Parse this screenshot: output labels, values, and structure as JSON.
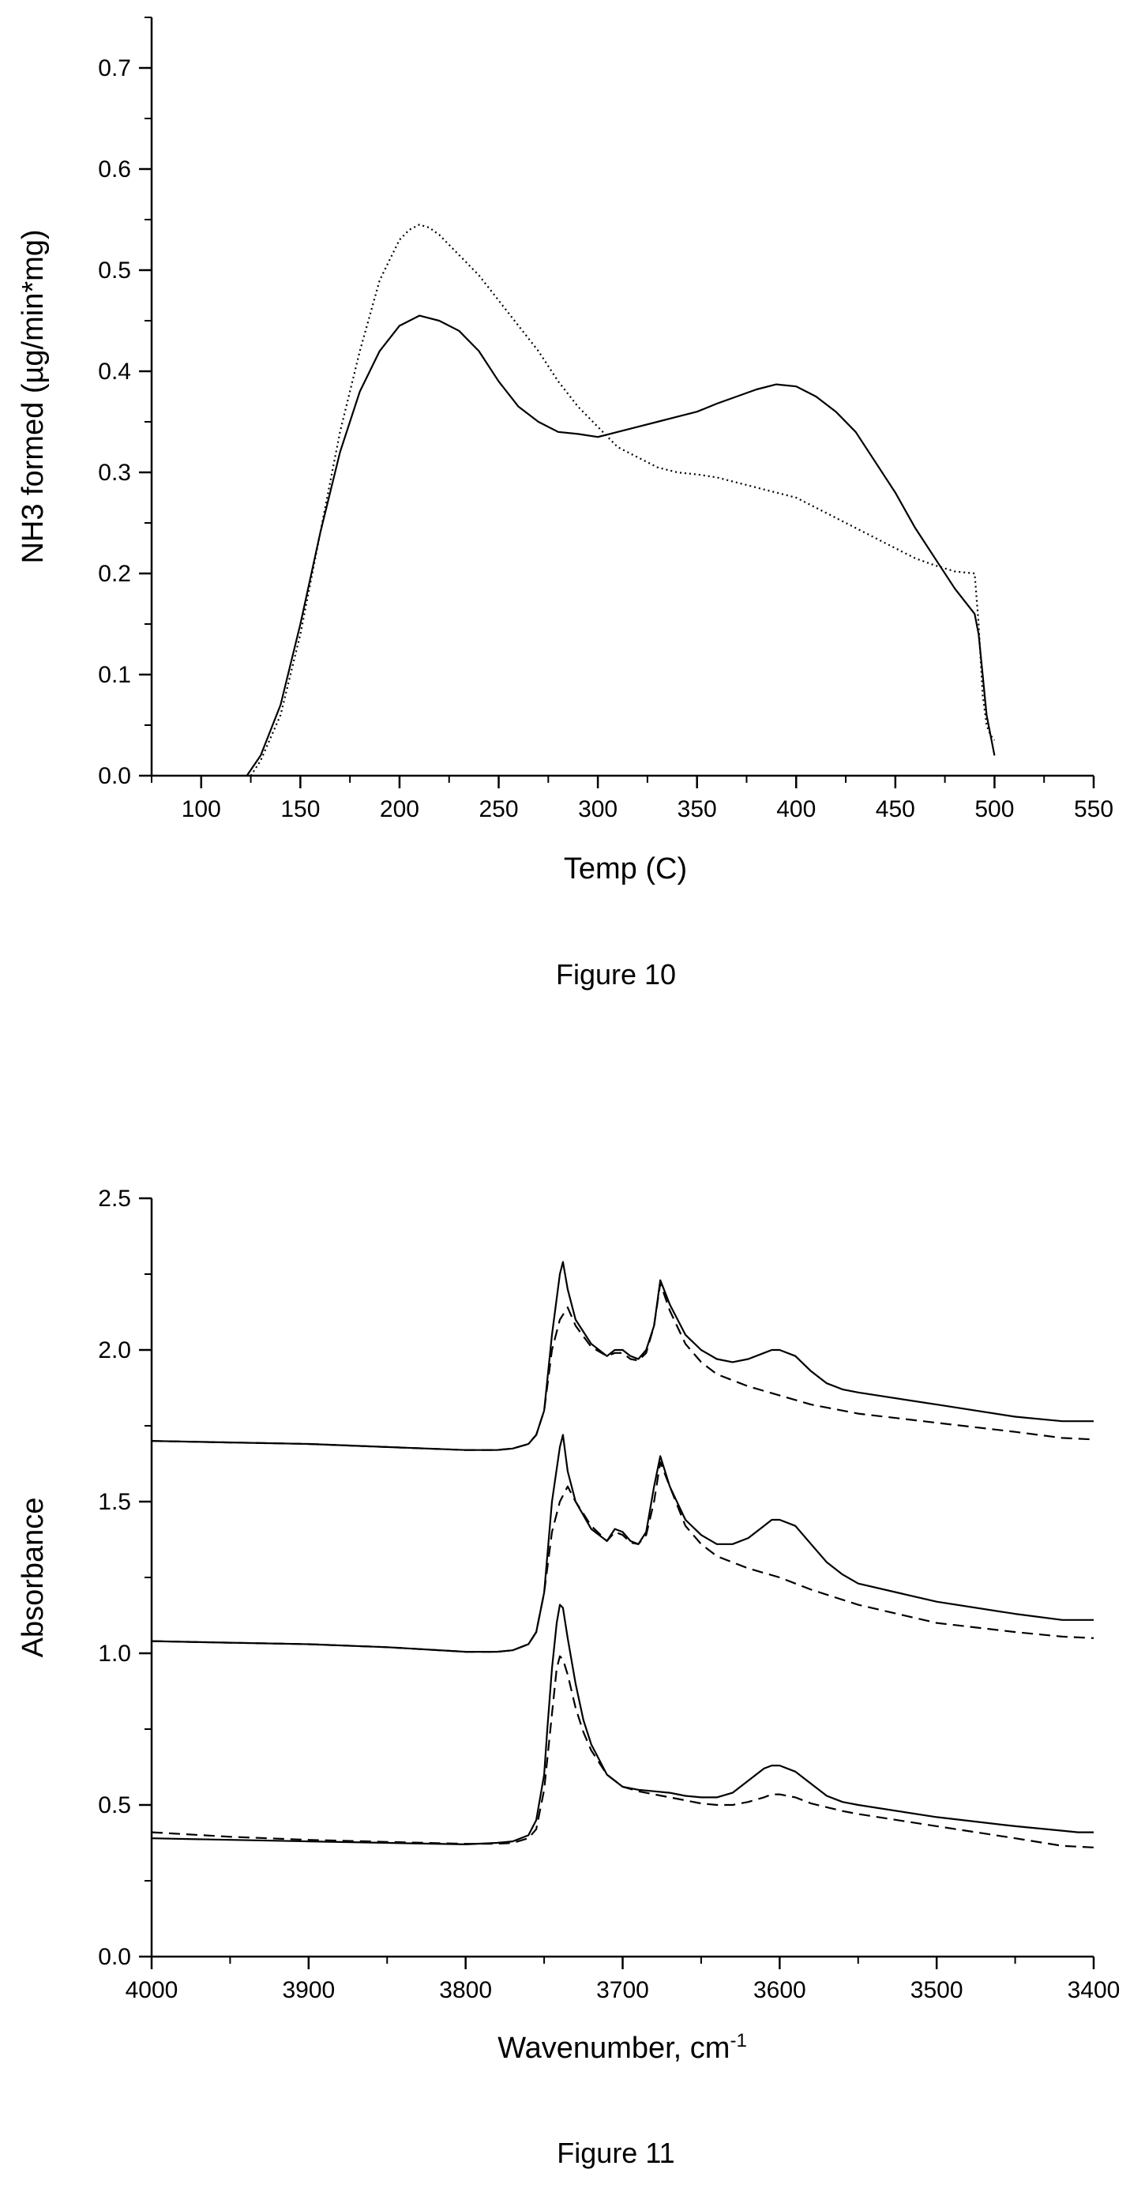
{
  "chart_data": [
    {
      "type": "line",
      "title": "",
      "caption": "Figure 10",
      "xlabel": "Temp (C)",
      "ylabel": "NH3 formed (µg/min*mg)",
      "xlim": [
        75,
        550
      ],
      "ylim": [
        0,
        0.75
      ],
      "xticks": [
        100,
        150,
        200,
        250,
        300,
        350,
        400,
        450,
        500,
        550
      ],
      "xtick_labels": [
        "100",
        "150",
        "200",
        "250",
        "300",
        "350",
        "400",
        "450",
        "500",
        "550"
      ],
      "yticks": [
        0.0,
        0.1,
        0.2,
        0.3,
        0.4,
        0.5,
        0.6,
        0.7
      ],
      "ytick_labels": [
        "0.0",
        "0.1",
        "0.2",
        "0.3",
        "0.4",
        "0.5",
        "0.6",
        "0.7"
      ],
      "grid": false,
      "series": [
        {
          "style": "solid",
          "x": [
            123,
            130,
            140,
            150,
            160,
            170,
            180,
            190,
            200,
            210,
            220,
            230,
            240,
            250,
            260,
            270,
            280,
            290,
            300,
            310,
            320,
            330,
            340,
            350,
            360,
            370,
            380,
            390,
            400,
            410,
            420,
            430,
            440,
            450,
            460,
            470,
            480,
            490,
            492,
            494,
            496,
            498,
            500
          ],
          "y": [
            0.0,
            0.02,
            0.07,
            0.15,
            0.24,
            0.32,
            0.38,
            0.42,
            0.445,
            0.455,
            0.45,
            0.44,
            0.42,
            0.39,
            0.365,
            0.35,
            0.34,
            0.338,
            0.335,
            0.34,
            0.345,
            0.35,
            0.355,
            0.36,
            0.368,
            0.375,
            0.382,
            0.387,
            0.385,
            0.375,
            0.36,
            0.34,
            0.31,
            0.28,
            0.245,
            0.215,
            0.185,
            0.16,
            0.14,
            0.1,
            0.06,
            0.04,
            0.02
          ]
        },
        {
          "style": "dotted",
          "x": [
            125,
            130,
            140,
            150,
            160,
            170,
            180,
            190,
            200,
            205,
            210,
            215,
            220,
            230,
            240,
            250,
            260,
            270,
            280,
            290,
            300,
            310,
            320,
            330,
            340,
            350,
            360,
            370,
            380,
            390,
            400,
            410,
            420,
            430,
            440,
            450,
            460,
            470,
            480,
            490,
            492,
            494,
            496,
            498,
            500
          ],
          "y": [
            0.0,
            0.015,
            0.06,
            0.14,
            0.24,
            0.34,
            0.42,
            0.49,
            0.53,
            0.54,
            0.545,
            0.542,
            0.535,
            0.515,
            0.495,
            0.47,
            0.445,
            0.42,
            0.39,
            0.365,
            0.345,
            0.325,
            0.315,
            0.305,
            0.3,
            0.298,
            0.295,
            0.29,
            0.285,
            0.28,
            0.275,
            0.265,
            0.255,
            0.245,
            0.235,
            0.225,
            0.215,
            0.208,
            0.202,
            0.2,
            0.15,
            0.08,
            0.05,
            0.04,
            0.035
          ]
        }
      ]
    },
    {
      "type": "line",
      "title": "",
      "caption": "Figure 11",
      "xlabel": "Wavenumber, cm",
      "xlabel_superscript": "-1",
      "ylabel": "Absorbance",
      "xlim": [
        4000,
        3400
      ],
      "x_reversed": true,
      "ylim": [
        0,
        2.5
      ],
      "xticks": [
        4000,
        3900,
        3800,
        3700,
        3600,
        3500,
        3400
      ],
      "xtick_labels": [
        "4000",
        "3900",
        "3800",
        "3700",
        "3600",
        "3500",
        "3400"
      ],
      "yticks": [
        0.0,
        0.5,
        1.0,
        1.5,
        2.0,
        2.5
      ],
      "ytick_labels": [
        "0.0",
        "0.5",
        "1.0",
        "1.5",
        "2.0",
        "2.5"
      ],
      "grid": false,
      "series": [
        {
          "style": "solid",
          "x": [
            4000,
            3950,
            3900,
            3850,
            3800,
            3780,
            3770,
            3760,
            3755,
            3750,
            3745,
            3740,
            3738,
            3735,
            3730,
            3720,
            3710,
            3705,
            3700,
            3695,
            3690,
            3685,
            3680,
            3676,
            3670,
            3660,
            3650,
            3640,
            3630,
            3620,
            3610,
            3605,
            3600,
            3590,
            3580,
            3570,
            3560,
            3550,
            3500,
            3450,
            3420,
            3410,
            3400
          ],
          "y": [
            1.7,
            1.695,
            1.69,
            1.68,
            1.67,
            1.67,
            1.675,
            1.69,
            1.72,
            1.8,
            2.05,
            2.25,
            2.29,
            2.2,
            2.1,
            2.02,
            1.98,
            2.0,
            2.0,
            1.98,
            1.97,
            2.0,
            2.08,
            2.23,
            2.15,
            2.05,
            2.0,
            1.97,
            1.96,
            1.97,
            1.99,
            2.0,
            2.0,
            1.98,
            1.93,
            1.89,
            1.87,
            1.86,
            1.82,
            1.78,
            1.765,
            1.765,
            1.765
          ]
        },
        {
          "style": "dashed",
          "x": [
            4000,
            3950,
            3900,
            3850,
            3800,
            3780,
            3770,
            3760,
            3755,
            3750,
            3745,
            3740,
            3735,
            3730,
            3720,
            3710,
            3705,
            3700,
            3695,
            3690,
            3685,
            3680,
            3676,
            3670,
            3660,
            3650,
            3640,
            3620,
            3600,
            3580,
            3550,
            3500,
            3450,
            3420,
            3400
          ],
          "y": [
            1.7,
            1.695,
            1.69,
            1.68,
            1.67,
            1.67,
            1.675,
            1.69,
            1.72,
            1.8,
            2.0,
            2.1,
            2.14,
            2.08,
            2.01,
            1.98,
            1.99,
            1.99,
            1.97,
            1.965,
            1.99,
            2.08,
            2.22,
            2.13,
            2.02,
            1.96,
            1.92,
            1.88,
            1.85,
            1.82,
            1.79,
            1.76,
            1.73,
            1.71,
            1.705
          ]
        },
        {
          "style": "solid",
          "x": [
            4000,
            3950,
            3900,
            3850,
            3800,
            3780,
            3770,
            3760,
            3755,
            3750,
            3745,
            3740,
            3738,
            3735,
            3730,
            3720,
            3710,
            3705,
            3700,
            3695,
            3690,
            3685,
            3680,
            3676,
            3670,
            3660,
            3650,
            3640,
            3630,
            3620,
            3610,
            3605,
            3600,
            3590,
            3580,
            3570,
            3560,
            3550,
            3500,
            3450,
            3420,
            3410,
            3400
          ],
          "y": [
            1.04,
            1.035,
            1.03,
            1.02,
            1.005,
            1.005,
            1.01,
            1.03,
            1.07,
            1.2,
            1.5,
            1.68,
            1.72,
            1.6,
            1.5,
            1.41,
            1.37,
            1.41,
            1.4,
            1.37,
            1.36,
            1.4,
            1.55,
            1.65,
            1.55,
            1.44,
            1.39,
            1.36,
            1.36,
            1.38,
            1.42,
            1.44,
            1.44,
            1.42,
            1.36,
            1.3,
            1.26,
            1.23,
            1.17,
            1.13,
            1.11,
            1.11,
            1.11
          ]
        },
        {
          "style": "dashed",
          "x": [
            4000,
            3950,
            3900,
            3850,
            3800,
            3780,
            3770,
            3760,
            3755,
            3750,
            3745,
            3740,
            3735,
            3730,
            3720,
            3710,
            3705,
            3700,
            3695,
            3690,
            3685,
            3680,
            3676,
            3670,
            3660,
            3650,
            3640,
            3620,
            3600,
            3580,
            3550,
            3500,
            3450,
            3420,
            3400
          ],
          "y": [
            1.04,
            1.035,
            1.03,
            1.02,
            1.005,
            1.005,
            1.01,
            1.03,
            1.07,
            1.2,
            1.4,
            1.5,
            1.55,
            1.5,
            1.42,
            1.37,
            1.4,
            1.39,
            1.365,
            1.36,
            1.39,
            1.5,
            1.63,
            1.55,
            1.42,
            1.36,
            1.32,
            1.28,
            1.25,
            1.21,
            1.16,
            1.1,
            1.07,
            1.055,
            1.05
          ]
        },
        {
          "style": "solid",
          "x": [
            4000,
            3950,
            3900,
            3850,
            3800,
            3780,
            3770,
            3760,
            3755,
            3750,
            3748,
            3745,
            3742,
            3740,
            3738,
            3735,
            3730,
            3725,
            3720,
            3710,
            3700,
            3690,
            3680,
            3670,
            3660,
            3650,
            3640,
            3630,
            3620,
            3610,
            3605,
            3600,
            3590,
            3580,
            3570,
            3560,
            3550,
            3500,
            3450,
            3420,
            3410,
            3400
          ],
          "y": [
            0.39,
            0.385,
            0.38,
            0.375,
            0.37,
            0.375,
            0.38,
            0.4,
            0.45,
            0.6,
            0.75,
            0.95,
            1.1,
            1.16,
            1.15,
            1.05,
            0.9,
            0.78,
            0.7,
            0.6,
            0.56,
            0.55,
            0.545,
            0.54,
            0.53,
            0.525,
            0.525,
            0.54,
            0.58,
            0.62,
            0.63,
            0.63,
            0.61,
            0.57,
            0.53,
            0.51,
            0.5,
            0.46,
            0.43,
            0.415,
            0.41,
            0.41
          ]
        },
        {
          "style": "dashed",
          "x": [
            4000,
            3950,
            3900,
            3850,
            3800,
            3780,
            3770,
            3760,
            3755,
            3750,
            3745,
            3742,
            3740,
            3738,
            3735,
            3730,
            3725,
            3720,
            3710,
            3700,
            3690,
            3680,
            3670,
            3660,
            3650,
            3640,
            3630,
            3620,
            3610,
            3605,
            3600,
            3590,
            3580,
            3560,
            3550,
            3500,
            3450,
            3420,
            3400
          ],
          "y": [
            0.41,
            0.395,
            0.385,
            0.378,
            0.372,
            0.372,
            0.375,
            0.39,
            0.42,
            0.55,
            0.8,
            0.95,
            0.99,
            0.98,
            0.93,
            0.82,
            0.74,
            0.68,
            0.6,
            0.56,
            0.545,
            0.535,
            0.525,
            0.515,
            0.505,
            0.5,
            0.5,
            0.51,
            0.525,
            0.535,
            0.535,
            0.525,
            0.505,
            0.48,
            0.47,
            0.43,
            0.39,
            0.365,
            0.36
          ]
        }
      ]
    }
  ]
}
